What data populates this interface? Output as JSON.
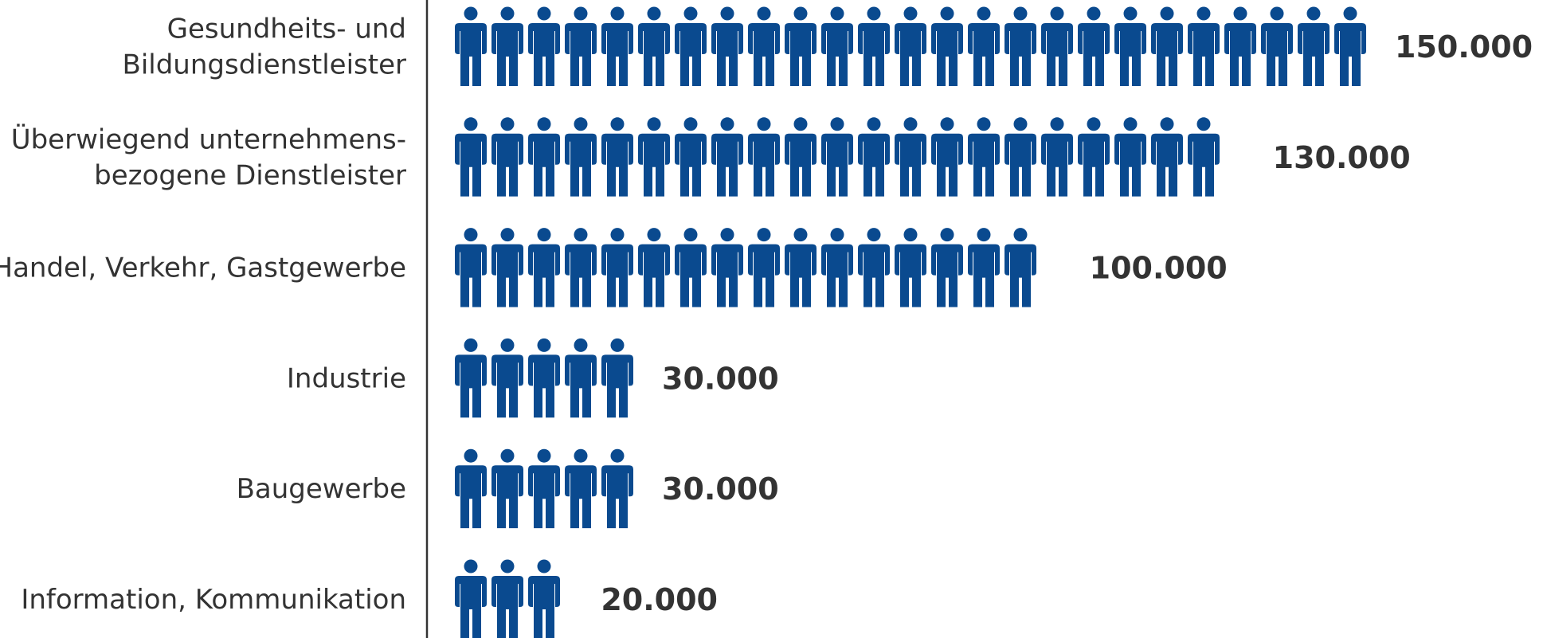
{
  "chart_data": {
    "type": "bar",
    "title": "",
    "xlabel": "",
    "ylabel": "",
    "orientation": "horizontal",
    "pictogram": true,
    "icon": "person-icon",
    "unit_per_icon": 6000,
    "categories": [
      [
        "Gesundheits- und",
        "Bildungsdienstleister"
      ],
      [
        "Überwiegend unternehmens-",
        "bezogene Dienstleister"
      ],
      [
        "Handel, Verkehr, Gastgewerbe"
      ],
      [
        "Industrie"
      ],
      [
        "Baugewerbe"
      ],
      [
        "Information, Kommunikation"
      ]
    ],
    "values": [
      150000,
      130000,
      100000,
      30000,
      30000,
      20000
    ],
    "value_labels": [
      "150.000",
      "130.000",
      "100.000",
      "30.000",
      "30.000",
      "20.000"
    ],
    "icon_color": "#0a4a8f",
    "text_color": "#333333",
    "axis_color": "#333333"
  }
}
